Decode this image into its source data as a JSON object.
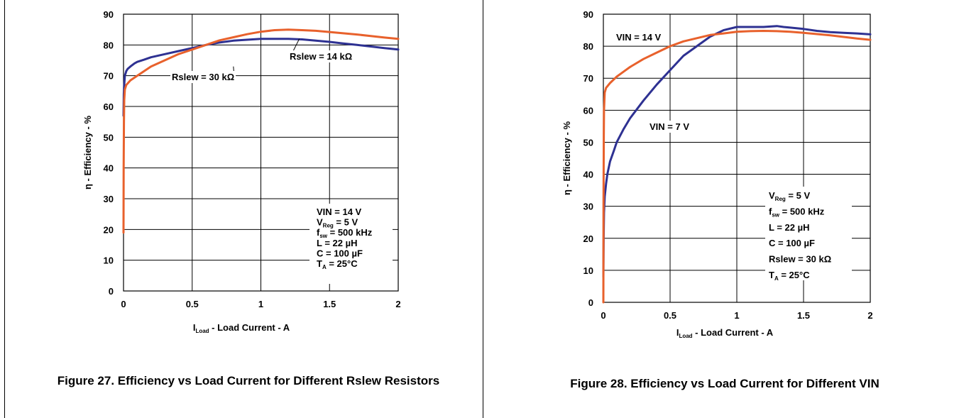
{
  "chart_data": [
    {
      "type": "line",
      "caption": "Figure 27. Efficiency vs Load Current for Different Rslew Resistors",
      "xlabel": {
        "main": "I",
        "sub": "Load",
        "rest": " - Load Current - A"
      },
      "ylabel": "η - Efficiency - %",
      "xlim": [
        0,
        2
      ],
      "ylim": [
        0,
        90
      ],
      "xticks": [
        0,
        0.5,
        1,
        1.5,
        2
      ],
      "xtick_labels": [
        "0",
        "0.5",
        "1",
        "1.5",
        "2"
      ],
      "yticks": [
        0,
        10,
        20,
        30,
        40,
        50,
        60,
        70,
        80,
        90
      ],
      "ytick_labels": [
        "0",
        "10",
        "20",
        "30",
        "40",
        "50",
        "60",
        "70",
        "80",
        "90"
      ],
      "grid": true,
      "series": [
        {
          "name": "Rslew = 14 kΩ",
          "color": "#2e3192",
          "x": [
            0.0,
            0.002,
            0.005,
            0.01,
            0.02,
            0.03,
            0.05,
            0.08,
            0.1,
            0.15,
            0.2,
            0.3,
            0.4,
            0.5,
            0.6,
            0.7,
            0.8,
            0.9,
            1.0,
            1.1,
            1.2,
            1.3,
            1.4,
            1.5,
            1.6,
            1.7,
            1.8,
            1.9,
            2.0
          ],
          "y": [
            57,
            64,
            67,
            70,
            71.5,
            72.2,
            73,
            74,
            74.5,
            75.2,
            76,
            77,
            78,
            79,
            80,
            80.8,
            81.4,
            81.7,
            82,
            82,
            82,
            81.8,
            81.4,
            81,
            80.5,
            80,
            79.5,
            79,
            78.5
          ]
        },
        {
          "name": "Rslew = 30 kΩ",
          "color": "#e8612c",
          "x": [
            0.0,
            0.001,
            0.003,
            0.005,
            0.01,
            0.02,
            0.05,
            0.1,
            0.15,
            0.2,
            0.3,
            0.4,
            0.5,
            0.6,
            0.7,
            0.8,
            0.9,
            1.0,
            1.1,
            1.2,
            1.3,
            1.4,
            1.5,
            1.6,
            1.7,
            1.8,
            1.9,
            2.0
          ],
          "y": [
            19,
            40,
            55,
            62,
            65.5,
            67,
            68.5,
            70,
            71.5,
            73,
            75,
            77,
            78.5,
            80,
            81.5,
            82.5,
            83.5,
            84.3,
            84.8,
            85,
            84.8,
            84.6,
            84.2,
            83.8,
            83.4,
            82.9,
            82.4,
            82
          ]
        }
      ],
      "annotations": [
        {
          "label": "Rslew = 14 kΩ",
          "arrow_to": [
            1.28,
            82
          ]
        },
        {
          "label": "Rslew = 30 kΩ",
          "arrow_to": [
            0.8,
            73
          ]
        }
      ],
      "conditions": [
        {
          "main": "VIN = 14 V"
        },
        {
          "main": "V",
          "sub": "Reg",
          "rest": " = 5 V"
        },
        {
          "main": "f",
          "sub": "sw",
          "rest": " = 500 kHz"
        },
        {
          "main": "L = 22 µH"
        },
        {
          "main": "C = 100 µF"
        },
        {
          "main": "T",
          "sub": "A",
          "rest": " = 25°C"
        }
      ]
    },
    {
      "type": "line",
      "caption": "Figure 28. Efficiency vs Load Current for Different VIN",
      "xlabel": {
        "main": "I",
        "sub": "Load",
        "rest": " - Load Current - A"
      },
      "ylabel": "η - Efficiency - %",
      "xlim": [
        0,
        2
      ],
      "ylim": [
        0,
        90
      ],
      "xticks": [
        0,
        0.5,
        1,
        1.5,
        2
      ],
      "xtick_labels": [
        "0",
        "0.5",
        "1",
        "1.5",
        "2"
      ],
      "yticks": [
        0,
        10,
        20,
        30,
        40,
        50,
        60,
        70,
        80,
        90
      ],
      "ytick_labels": [
        "0",
        "10",
        "20",
        "30",
        "40",
        "50",
        "60",
        "70",
        "80",
        "90"
      ],
      "grid": true,
      "series": [
        {
          "name": "VIN = 7 V",
          "color": "#2e3192",
          "x": [
            0.0,
            0.002,
            0.005,
            0.01,
            0.02,
            0.03,
            0.05,
            0.08,
            0.1,
            0.15,
            0.2,
            0.3,
            0.4,
            0.5,
            0.6,
            0.7,
            0.8,
            0.9,
            1.0,
            1.1,
            1.2,
            1.3,
            1.35,
            1.4,
            1.5,
            1.6,
            1.7,
            1.8,
            1.9,
            2.0
          ],
          "y": [
            8,
            20,
            28,
            33,
            37,
            40,
            44,
            47.5,
            50,
            54,
            57.5,
            63,
            68,
            72.5,
            77,
            80,
            83,
            85,
            86,
            86,
            86,
            86.3,
            86,
            85.8,
            85.4,
            84.8,
            84.4,
            84.2,
            84,
            83.7
          ]
        },
        {
          "name": "VIN = 14 V",
          "color": "#e8612c",
          "x": [
            0.0,
            0.001,
            0.003,
            0.005,
            0.01,
            0.02,
            0.05,
            0.1,
            0.15,
            0.2,
            0.3,
            0.4,
            0.5,
            0.6,
            0.7,
            0.8,
            0.9,
            1.0,
            1.1,
            1.2,
            1.3,
            1.4,
            1.5,
            1.6,
            1.7,
            1.8,
            1.9,
            2.0
          ],
          "y": [
            0,
            30,
            52,
            60,
            65.5,
            67,
            68.5,
            70.5,
            72,
            73.5,
            76,
            78,
            80,
            81.5,
            82.5,
            83.5,
            84,
            84.5,
            84.7,
            84.8,
            84.7,
            84.5,
            84.2,
            83.8,
            83.4,
            82.9,
            82.4,
            82
          ]
        }
      ],
      "annotations": [
        {
          "label": "VIN = 14 V"
        },
        {
          "label": "VIN = 7 V"
        }
      ],
      "conditions": [
        {
          "main": "V",
          "sub": "Reg",
          "rest": " = 5 V"
        },
        {
          "main": "f",
          "sub": "sw",
          "rest": " = 500 kHz"
        },
        {
          "main": "L = 22 µH"
        },
        {
          "main": "C = 100 µF"
        },
        {
          "main": "Rslew = 30 kΩ"
        },
        {
          "main": "T",
          "sub": "A",
          "rest": " = 25°C"
        }
      ]
    }
  ]
}
